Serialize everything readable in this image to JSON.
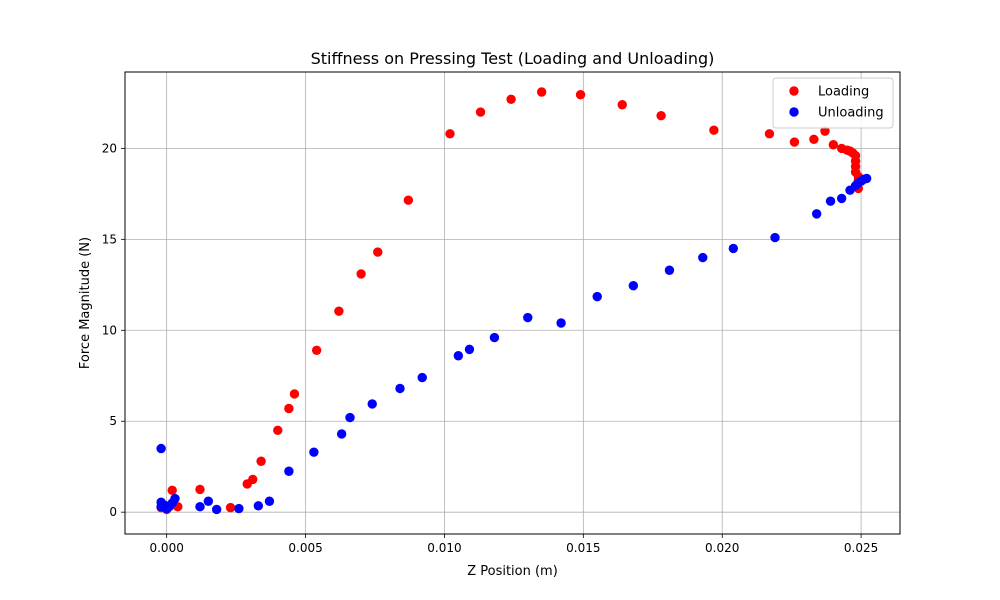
{
  "chart_data": {
    "type": "scatter",
    "title": "Stiffness on Pressing Test (Loading and Unloading)",
    "xlabel": "Z Position (m)",
    "ylabel": "Force Magnitude (N)",
    "xlim": [
      -0.0015,
      0.0264
    ],
    "ylim": [
      -1.2,
      24.2
    ],
    "xticks": [
      0.0,
      0.005,
      0.01,
      0.015,
      0.02,
      0.025
    ],
    "xtick_labels": [
      "0.000",
      "0.005",
      "0.010",
      "0.015",
      "0.020",
      "0.025"
    ],
    "yticks": [
      0,
      5,
      10,
      15,
      20
    ],
    "ytick_labels": [
      "0",
      "5",
      "10",
      "15",
      "20"
    ],
    "grid": true,
    "legend_position": "upper right",
    "series": [
      {
        "name": "Loading",
        "color": "#ff0000",
        "points": [
          [
            -0.0002,
            0.25
          ],
          [
            0.0,
            0.15
          ],
          [
            0.0001,
            0.3
          ],
          [
            0.0002,
            1.2
          ],
          [
            0.0004,
            0.3
          ],
          [
            0.0012,
            1.25
          ],
          [
            0.0023,
            0.25
          ],
          [
            0.0029,
            1.55
          ],
          [
            0.0031,
            1.8
          ],
          [
            0.0034,
            2.8
          ],
          [
            0.004,
            4.5
          ],
          [
            0.0044,
            5.7
          ],
          [
            0.0046,
            6.5
          ],
          [
            0.0054,
            8.9
          ],
          [
            0.0062,
            11.05
          ],
          [
            0.007,
            13.1
          ],
          [
            0.0076,
            14.3
          ],
          [
            0.0087,
            17.15
          ],
          [
            0.0102,
            20.8
          ],
          [
            0.0113,
            22.0
          ],
          [
            0.0124,
            22.7
          ],
          [
            0.0135,
            23.1
          ],
          [
            0.0149,
            22.95
          ],
          [
            0.0164,
            22.4
          ],
          [
            0.0178,
            21.8
          ],
          [
            0.0197,
            21.0
          ],
          [
            0.0217,
            20.8
          ],
          [
            0.0226,
            20.35
          ],
          [
            0.0233,
            20.5
          ],
          [
            0.0237,
            20.95
          ],
          [
            0.024,
            20.2
          ],
          [
            0.0243,
            20.0
          ],
          [
            0.0245,
            19.9
          ],
          [
            0.0246,
            19.85
          ],
          [
            0.0247,
            19.75
          ],
          [
            0.0248,
            19.6
          ],
          [
            0.0248,
            19.3
          ],
          [
            0.0248,
            19.0
          ],
          [
            0.0248,
            18.7
          ],
          [
            0.0249,
            18.45
          ],
          [
            0.0249,
            18.2
          ],
          [
            0.0249,
            17.8
          ]
        ]
      },
      {
        "name": "Unloading",
        "color": "#0000ff",
        "points": [
          [
            -0.0002,
            3.5
          ],
          [
            -0.0002,
            0.55
          ],
          [
            -0.0002,
            0.3
          ],
          [
            -0.0001,
            0.4
          ],
          [
            0.0,
            0.2
          ],
          [
            0.0001,
            0.35
          ],
          [
            0.0002,
            0.5
          ],
          [
            0.0003,
            0.75
          ],
          [
            0.0012,
            0.3
          ],
          [
            0.0015,
            0.6
          ],
          [
            0.0018,
            0.15
          ],
          [
            0.0026,
            0.2
          ],
          [
            0.0033,
            0.35
          ],
          [
            0.0037,
            0.6
          ],
          [
            0.0044,
            2.25
          ],
          [
            0.0053,
            3.3
          ],
          [
            0.0063,
            4.3
          ],
          [
            0.0066,
            5.2
          ],
          [
            0.0074,
            5.95
          ],
          [
            0.0084,
            6.8
          ],
          [
            0.0092,
            7.4
          ],
          [
            0.0105,
            8.6
          ],
          [
            0.0109,
            8.95
          ],
          [
            0.0118,
            9.6
          ],
          [
            0.013,
            10.7
          ],
          [
            0.0142,
            10.4
          ],
          [
            0.0155,
            11.85
          ],
          [
            0.0168,
            12.45
          ],
          [
            0.0181,
            13.3
          ],
          [
            0.0193,
            14.0
          ],
          [
            0.0204,
            14.5
          ],
          [
            0.0219,
            15.1
          ],
          [
            0.0234,
            16.4
          ],
          [
            0.0239,
            17.1
          ],
          [
            0.0243,
            17.25
          ],
          [
            0.0246,
            17.7
          ],
          [
            0.0248,
            17.95
          ],
          [
            0.0249,
            18.1
          ],
          [
            0.025,
            18.2
          ],
          [
            0.0251,
            18.3
          ],
          [
            0.0252,
            18.35
          ]
        ]
      }
    ]
  }
}
